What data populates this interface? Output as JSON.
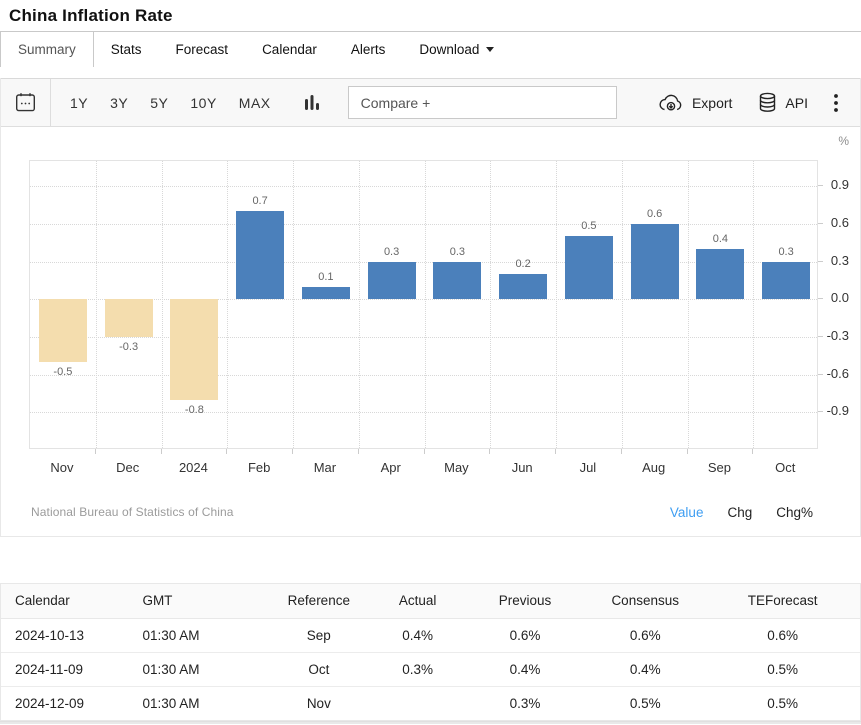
{
  "header": {
    "title": "China Inflation Rate"
  },
  "tabs": [
    {
      "label": "Summary",
      "active": true
    },
    {
      "label": "Stats"
    },
    {
      "label": "Forecast"
    },
    {
      "label": "Calendar"
    },
    {
      "label": "Alerts"
    },
    {
      "label": "Download",
      "has_dropdown": true
    }
  ],
  "toolbar": {
    "ranges": [
      "1Y",
      "3Y",
      "5Y",
      "10Y",
      "MAX"
    ],
    "compare_placeholder": "Compare +",
    "export_label": "Export",
    "api_label": "API",
    "icons": [
      "calendar-icon",
      "bar-chart-icon",
      "cloud-download-icon",
      "database-icon",
      "kebab-menu-icon"
    ]
  },
  "chart_data": {
    "type": "bar",
    "title": "China Inflation Rate",
    "unit": "%",
    "categories": [
      "Nov",
      "Dec",
      "2024",
      "Feb",
      "Mar",
      "Apr",
      "May",
      "Jun",
      "Jul",
      "Aug",
      "Sep",
      "Oct"
    ],
    "values": [
      -0.5,
      -0.3,
      -0.8,
      0.7,
      0.1,
      0.3,
      0.3,
      0.2,
      0.5,
      0.6,
      0.4,
      0.3
    ],
    "ylim": [
      -1.2,
      1.1
    ],
    "yticks": [
      0.9,
      0.6,
      0.3,
      0.0,
      -0.3,
      -0.6,
      -0.9
    ],
    "positive_color": "#4b80bb",
    "negative_color": "#f4ddae",
    "grid": true,
    "data_labels": true,
    "source": "National Bureau of Statistics of China"
  },
  "chart_footer": {
    "modes": [
      {
        "label": "Value",
        "active": true
      },
      {
        "label": "Chg"
      },
      {
        "label": "Chg%"
      }
    ]
  },
  "table": {
    "columns": [
      "Calendar",
      "GMT",
      "Reference",
      "Actual",
      "Previous",
      "Consensus",
      "TEForecast"
    ],
    "rows": [
      [
        "2024-10-13",
        "01:30 AM",
        "Sep",
        "0.4%",
        "0.6%",
        "0.6%",
        "0.6%"
      ],
      [
        "2024-11-09",
        "01:30 AM",
        "Oct",
        "0.3%",
        "0.4%",
        "0.4%",
        "0.5%"
      ],
      [
        "2024-12-09",
        "01:30 AM",
        "Nov",
        "",
        "0.3%",
        "0.5%",
        "0.5%"
      ]
    ]
  }
}
